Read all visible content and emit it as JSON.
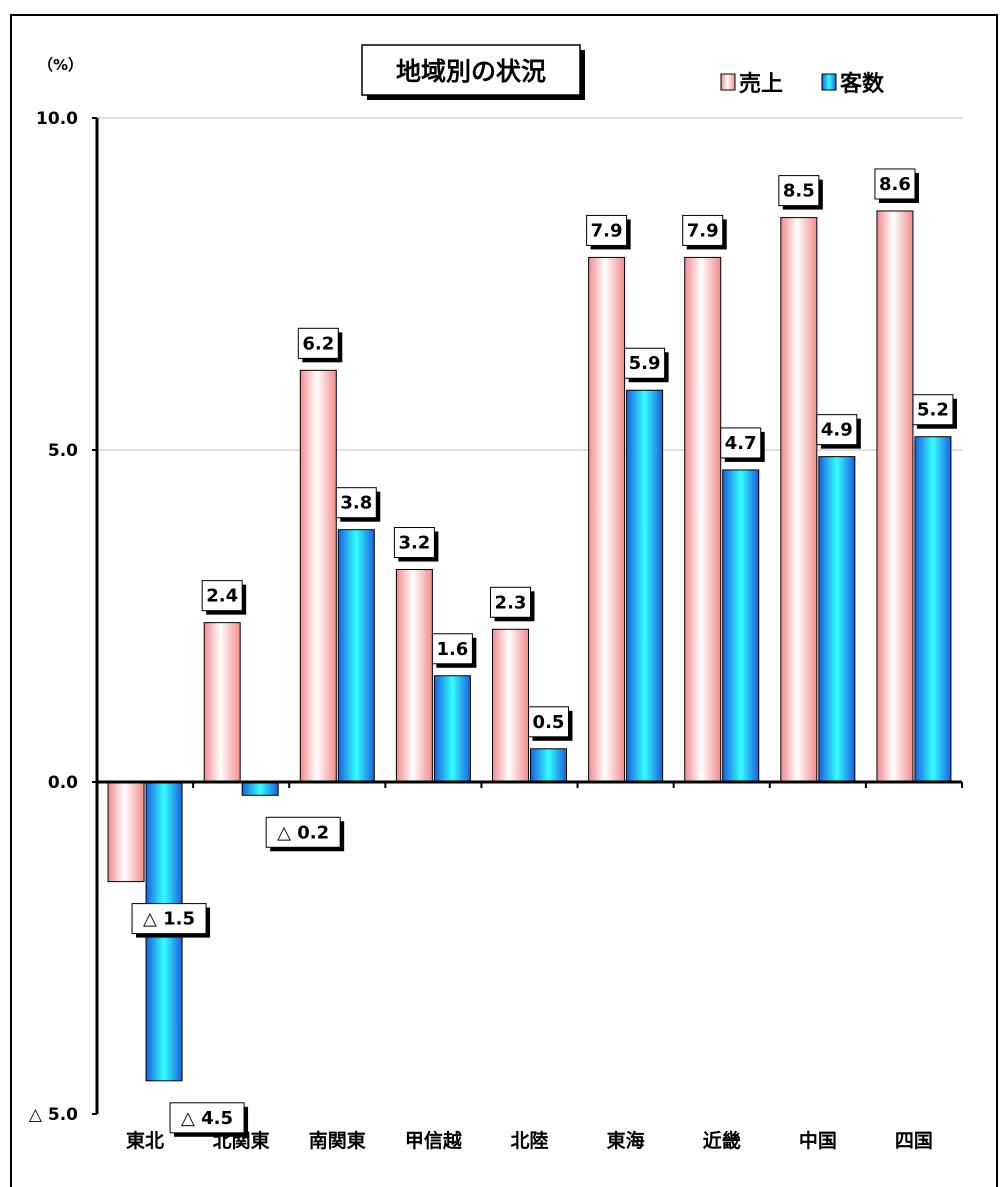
{
  "chart_data": {
    "type": "bar",
    "title": "地域別の状況",
    "unit": "（%）",
    "categories": [
      "東北",
      "北関東",
      "南関東",
      "甲信越",
      "北陸",
      "東海",
      "近畿",
      "中国",
      "四国"
    ],
    "series": [
      {
        "name": "売上",
        "values": [
          -1.5,
          2.4,
          6.2,
          3.2,
          2.3,
          7.9,
          7.9,
          8.5,
          8.6
        ],
        "labels": [
          "△ 1.5",
          "2.4",
          "6.2",
          "3.2",
          "2.3",
          "7.9",
          "7.9",
          "8.5",
          "8.6"
        ],
        "color": "#f4a6a6"
      },
      {
        "name": "客数",
        "values": [
          -4.5,
          -0.2,
          3.8,
          1.6,
          0.5,
          5.9,
          4.7,
          4.9,
          5.2
        ],
        "labels": [
          "△ 4.5",
          "△ 0.2",
          "3.8",
          "1.6",
          "0.5",
          "5.9",
          "4.7",
          "4.9",
          "5.2"
        ],
        "color": "#1fa3f0"
      }
    ],
    "ylim": [
      -5,
      10
    ],
    "yticks": [
      {
        "value": 10,
        "label": "10.0"
      },
      {
        "value": 5,
        "label": "5.0"
      },
      {
        "value": 0,
        "label": "0.0"
      },
      {
        "value": -5,
        "label": "△ 5.0"
      }
    ],
    "legend": "top-right",
    "grid": true
  }
}
